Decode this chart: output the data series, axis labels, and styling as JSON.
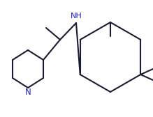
{
  "line_color": "#1c1c30",
  "nh_color": "#2222bb",
  "n_color": "#2222bb",
  "bg_color": "#ffffff",
  "linewidth": 1.5,
  "figsize": [
    2.19,
    1.68
  ],
  "dpi": 100
}
